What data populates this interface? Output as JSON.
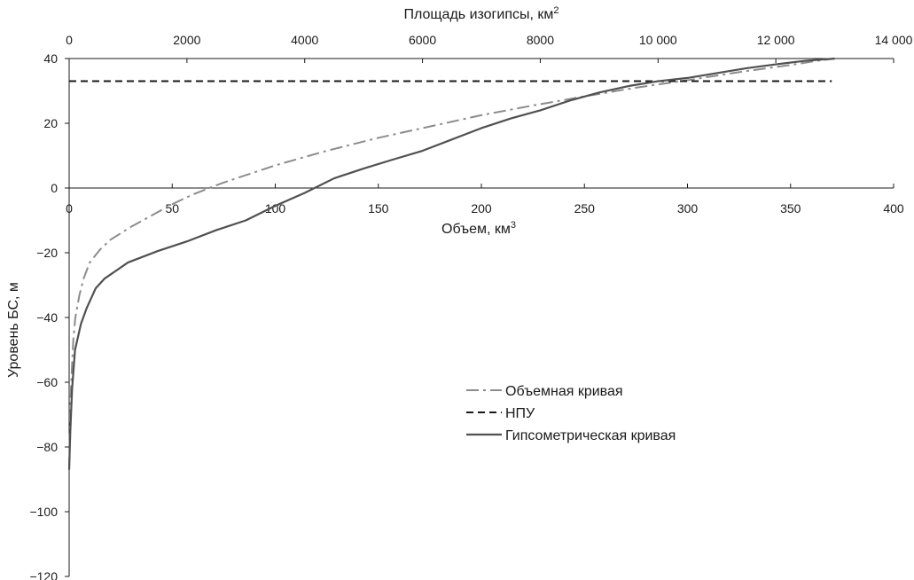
{
  "chart_data": {
    "type": "line",
    "x_top_axis": {
      "label": "Площадь изогипсы, км",
      "label_sup": "2",
      "range": [
        0,
        14000
      ],
      "ticks": [
        {
          "value": 0,
          "label": "0"
        },
        {
          "value": 2000,
          "label": "2000"
        },
        {
          "value": 4000,
          "label": "4000"
        },
        {
          "value": 6000,
          "label": "6000"
        },
        {
          "value": 8000,
          "label": "8000"
        },
        {
          "value": 10000,
          "label": "10 000"
        },
        {
          "value": 12000,
          "label": "12 000"
        },
        {
          "value": 14000,
          "label": "14 000"
        }
      ]
    },
    "x_bottom_axis": {
      "label": "Объем, км",
      "label_sup": "3",
      "range": [
        0,
        400
      ],
      "ticks": [
        {
          "value": 0,
          "label": "0"
        },
        {
          "value": 50,
          "label": "50"
        },
        {
          "value": 100,
          "label": "100"
        },
        {
          "value": 150,
          "label": "150"
        },
        {
          "value": 200,
          "label": "200"
        },
        {
          "value": 250,
          "label": "250"
        },
        {
          "value": 300,
          "label": "300"
        },
        {
          "value": 350,
          "label": "350"
        },
        {
          "value": 400,
          "label": "400"
        }
      ]
    },
    "y_axis": {
      "label": "Уровень БС, м",
      "range": [
        -120,
        40
      ],
      "ticks": [
        {
          "value": 40,
          "label": "40"
        },
        {
          "value": 20,
          "label": "20"
        },
        {
          "value": 0,
          "label": "0"
        },
        {
          "value": -20,
          "label": "−20"
        },
        {
          "value": -40,
          "label": "−40"
        },
        {
          "value": -60,
          "label": "−60"
        },
        {
          "value": -80,
          "label": "−80"
        },
        {
          "value": -100,
          "label": "−100"
        },
        {
          "value": -120,
          "label": "−120"
        }
      ]
    },
    "grid": false,
    "legend_position": "center-right",
    "series": [
      {
        "name": "Объемная кривая",
        "x_axis": "bottom",
        "style": "dash-dot",
        "color": "#8c8c8c",
        "points": [
          [
            0,
            -87
          ],
          [
            0.5,
            -70
          ],
          [
            1,
            -60
          ],
          [
            2,
            -47
          ],
          [
            3,
            -40
          ],
          [
            5,
            -33
          ],
          [
            7,
            -28
          ],
          [
            10,
            -23
          ],
          [
            15,
            -19
          ],
          [
            20,
            -16
          ],
          [
            30,
            -12
          ],
          [
            40,
            -8.5
          ],
          [
            50,
            -5
          ],
          [
            60,
            -2
          ],
          [
            70,
            0.5
          ],
          [
            75,
            1.7
          ],
          [
            100,
            7
          ],
          [
            125,
            11.5
          ],
          [
            150,
            15.5
          ],
          [
            175,
            19
          ],
          [
            200,
            22.5
          ],
          [
            225,
            25.5
          ],
          [
            250,
            28.3
          ],
          [
            275,
            31
          ],
          [
            300,
            33.3
          ],
          [
            325,
            35.8
          ],
          [
            350,
            38
          ],
          [
            365,
            39.5
          ],
          [
            372,
            40
          ]
        ]
      },
      {
        "name": "НПУ",
        "x_axis": "bottom",
        "style": "dashed",
        "color": "#1a1a1a",
        "points": [
          [
            0,
            33
          ],
          [
            370,
            33
          ]
        ]
      },
      {
        "name": "Гипсометрическая кривая",
        "x_axis": "top",
        "style": "solid",
        "color": "#505050",
        "points": [
          [
            0,
            -87
          ],
          [
            20,
            -75
          ],
          [
            50,
            -62
          ],
          [
            100,
            -50
          ],
          [
            200,
            -42
          ],
          [
            300,
            -37
          ],
          [
            450,
            -31
          ],
          [
            600,
            -28
          ],
          [
            1000,
            -23
          ],
          [
            1500,
            -19.5
          ],
          [
            2000,
            -16.5
          ],
          [
            2500,
            -13
          ],
          [
            3000,
            -10
          ],
          [
            3500,
            -5.5
          ],
          [
            4000,
            -1.5
          ],
          [
            4500,
            3
          ],
          [
            5000,
            6
          ],
          [
            5500,
            8.8
          ],
          [
            6000,
            11.5
          ],
          [
            6500,
            15
          ],
          [
            7000,
            18.5
          ],
          [
            7500,
            21.5
          ],
          [
            8000,
            24
          ],
          [
            8500,
            27
          ],
          [
            9000,
            29.5
          ],
          [
            9500,
            31.5
          ],
          [
            10000,
            33
          ],
          [
            10500,
            34
          ],
          [
            11000,
            35.5
          ],
          [
            11500,
            37
          ],
          [
            12000,
            38.2
          ],
          [
            12500,
            39.3
          ],
          [
            13000,
            40
          ]
        ]
      }
    ]
  }
}
